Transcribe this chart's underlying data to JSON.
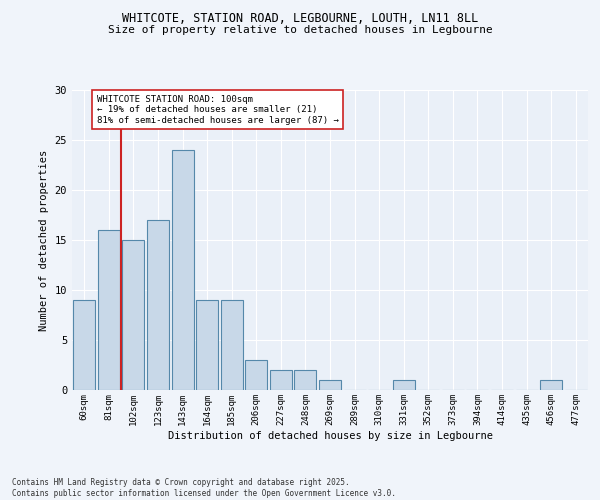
{
  "title_line1": "WHITCOTE, STATION ROAD, LEGBOURNE, LOUTH, LN11 8LL",
  "title_line2": "Size of property relative to detached houses in Legbourne",
  "xlabel": "Distribution of detached houses by size in Legbourne",
  "ylabel": "Number of detached properties",
  "categories": [
    "60sqm",
    "81sqm",
    "102sqm",
    "123sqm",
    "143sqm",
    "164sqm",
    "185sqm",
    "206sqm",
    "227sqm",
    "248sqm",
    "269sqm",
    "289sqm",
    "310sqm",
    "331sqm",
    "352sqm",
    "373sqm",
    "394sqm",
    "414sqm",
    "435sqm",
    "456sqm",
    "477sqm"
  ],
  "values": [
    9,
    16,
    15,
    17,
    24,
    9,
    9,
    3,
    2,
    2,
    1,
    0,
    0,
    1,
    0,
    0,
    0,
    0,
    0,
    1,
    0
  ],
  "bar_color": "#c8d8e8",
  "bar_edge_color": "#5588aa",
  "vline_color": "#cc2222",
  "annotation_text": "WHITCOTE STATION ROAD: 100sqm\n← 19% of detached houses are smaller (21)\n81% of semi-detached houses are larger (87) →",
  "annotation_box_color": "#ffffff",
  "annotation_box_edge": "#cc2222",
  "ylim": [
    0,
    30
  ],
  "yticks": [
    0,
    5,
    10,
    15,
    20,
    25,
    30
  ],
  "background_color": "#eaf0f8",
  "grid_color": "#ffffff",
  "fig_background": "#f0f4fa",
  "footer_line1": "Contains HM Land Registry data © Crown copyright and database right 2025.",
  "footer_line2": "Contains public sector information licensed under the Open Government Licence v3.0."
}
